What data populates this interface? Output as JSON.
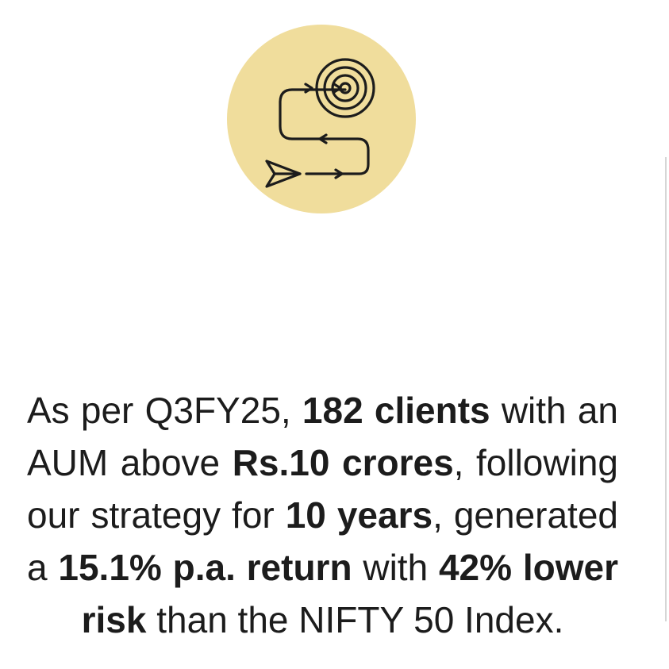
{
  "icon": {
    "name": "target-journey-icon",
    "background": "#f0dd9c"
  },
  "statement": {
    "t1": "As per Q3FY25, ",
    "b1": "182 clients",
    "t2": " with an AUM above ",
    "b2": "Rs.10 crores",
    "t3": ", following our strategy for ",
    "b3": "10 years",
    "t4": ", generated a ",
    "b4": "15.1% p.a. return",
    "t5": " with ",
    "b5": "42% lower risk",
    "t6": " than the NIFTY 50 Index."
  }
}
